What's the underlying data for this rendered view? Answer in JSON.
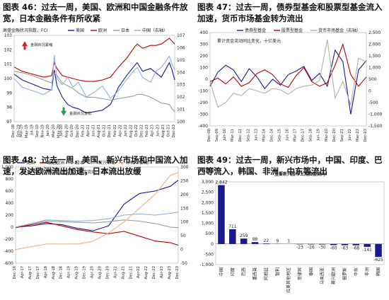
{
  "charts": [
    {
      "title": "图表 46：过去一周，美国、欧洲和中国金融条件放宽，日本金融条件有所收紧",
      "subtitle": "高盛金融状况指数，FCI",
      "legend": [
        "美国",
        "欧洲",
        "日本",
        "中国（右轴）"
      ],
      "annotations": [
        "金融状况紧缩",
        "金融状况宽松"
      ],
      "y_left_ticks": [
        "97",
        "98",
        "99",
        "100",
        "101",
        "102",
        "103"
      ],
      "y_right_ticks": [
        "100",
        "101",
        "102",
        "103",
        "104",
        "105",
        "106",
        "107"
      ],
      "x_ticks": [
        "Dec-18",
        "Feb-19",
        "Mar-19",
        "May-19",
        "Jul-19",
        "Sep-19",
        "Nov-19",
        "Jan-20",
        "Mar-20",
        "May-20",
        "Jun-20",
        "Aug-20",
        "Oct-20",
        "Dec-20",
        "Feb-21",
        "Apr-21",
        "Jun-21",
        "Aug-21",
        "Oct-21",
        "Dec-21",
        "Feb-22",
        "Apr-22",
        "Jun-22",
        "Aug-22",
        "Oct-22",
        "Dec-22",
        "Feb-23",
        "Apr-23",
        "Jun-23",
        "Aug-23",
        "Oct-23",
        "Dec-23"
      ]
    },
    {
      "title": "图表 47：过去一周，债券型基金和股票型基金流入加速，货币市场基金转为流出",
      "subtitle": "累计资金流动同比变化，十亿美元",
      "legend": [
        "债券型基金",
        "股票型基金",
        "货币市场基金（右轴）"
      ],
      "y_left_ticks": [
        "-400",
        "-300",
        "-200",
        "-100",
        "0",
        "100",
        "200",
        "300",
        "400"
      ],
      "y_right_ticks": [
        "-1,500",
        "-1,000",
        "-500",
        "0",
        "500",
        "1,000",
        "1,500",
        "2,000",
        "2,500"
      ],
      "x_ticks": [
        "Dec-08",
        "Sep-09",
        "Jun-10",
        "Mar-11",
        "Dec-11",
        "Sep-12",
        "Jun-13",
        "Mar-14",
        "Dec-14",
        "Sep-15",
        "Jun-16",
        "Mar-17",
        "Dec-17",
        "Sep-18",
        "Jun-19",
        "Mar-20",
        "Dec-20",
        "Sep-21",
        "Jun-22",
        "Mar-23",
        "Dec-23"
      ]
    },
    {
      "title": "图表 48：过去一周，美国、新兴市场和中国流入加速，发达欧洲流出加速，日本流出放缓",
      "subtitle": "2016年以来，股票型基金累计资金流动，十亿美元",
      "legend": [
        "美国",
        "发达欧洲",
        "日本",
        "新兴市场",
        "中国（右轴）"
      ],
      "y_left_ticks": [
        "-600",
        "-400",
        "-200",
        "0",
        "200",
        "400",
        "600",
        "800",
        "1,000"
      ],
      "y_right_ticks": [
        "-50",
        "0",
        "50",
        "100",
        "150",
        "200",
        "250",
        "300"
      ],
      "x_ticks": [
        "Dec-16",
        "Apr-17",
        "Aug-17",
        "Dec-17",
        "Apr-18",
        "Aug-18",
        "Dec-18",
        "Apr-19",
        "Aug-19",
        "Dec-19",
        "Apr-20",
        "Aug-20",
        "Dec-20",
        "Apr-21",
        "Aug-21",
        "Dec-21",
        "Apr-22",
        "Aug-22",
        "Dec-22",
        "Apr-23",
        "Aug-23",
        "Dec-23"
      ]
    },
    {
      "title": "图表 49：过去一周，新兴市场中，中国、印度、巴西等流入，韩国、非洲、中东等流出",
      "unit": "（百万美元）",
      "chart_title": "主要新兴股市上周资金流向",
      "y_ticks": [
        "-1,000",
        "-500",
        "0",
        "500",
        "1,000",
        "1,500",
        "2,000",
        "2,500",
        "3,000"
      ]
    }
  ],
  "chart_data": [
    {
      "type": "line",
      "title": "高盛金融状况指数，FCI",
      "ylim": [
        97,
        103
      ],
      "y2lim": [
        100,
        107
      ],
      "xlim": [
        "Dec-18",
        "Dec-23"
      ],
      "grid": false,
      "series": [
        {
          "name": "美国",
          "axis": "left",
          "color": "#1a1a8c",
          "x": [
            "Dec-18",
            "Mar-19",
            "Jul-19",
            "Nov-19",
            "Feb-20",
            "Mar-20",
            "Apr-20",
            "Jun-20",
            "Aug-20",
            "Oct-20",
            "Dec-20",
            "Mar-21",
            "Jun-21",
            "Sep-21",
            "Dec-21",
            "Mar-22",
            "Jun-22",
            "Sep-22",
            "Oct-22",
            "Dec-22",
            "Mar-23",
            "May-23",
            "Jul-23",
            "Oct-23",
            "Nov-23",
            "Dec-23"
          ],
          "values": [
            100.3,
            99.9,
            99.6,
            99.3,
            99.2,
            100.6,
            99.5,
            98.7,
            98.2,
            98.0,
            97.9,
            97.6,
            97.7,
            97.8,
            98.2,
            99.4,
            100.2,
            100.9,
            101.1,
            100.5,
            100.7,
            100.4,
            100.1,
            101.1,
            100.6,
            99.9
          ]
        },
        {
          "name": "欧洲",
          "axis": "left",
          "color": "#c00000",
          "x": [
            "Dec-18",
            "Mar-19",
            "Jul-19",
            "Nov-19",
            "Feb-20",
            "Mar-20",
            "Apr-20",
            "Jun-20",
            "Aug-20",
            "Oct-20",
            "Dec-20",
            "Mar-21",
            "Jun-21",
            "Sep-21",
            "Dec-21",
            "Mar-22",
            "Jun-22",
            "Sep-22",
            "Oct-22",
            "Dec-22",
            "Mar-23",
            "May-23",
            "Jul-23",
            "Oct-23",
            "Nov-23",
            "Dec-23"
          ],
          "values": [
            100.8,
            100.5,
            100.3,
            100.1,
            100.2,
            101.1,
            100.7,
            100.2,
            100.1,
            100.0,
            99.9,
            99.8,
            99.8,
            99.9,
            100.1,
            100.8,
            101.4,
            102.2,
            102.4,
            102.1,
            102.3,
            102.3,
            102.4,
            102.8,
            102.6,
            102.4
          ]
        },
        {
          "name": "日本",
          "axis": "left",
          "color": "#9a9a9a",
          "x": [
            "Dec-18",
            "Mar-19",
            "Jul-19",
            "Nov-19",
            "Feb-20",
            "Mar-20",
            "Apr-20",
            "Jun-20",
            "Aug-20",
            "Oct-20",
            "Dec-20",
            "Mar-21",
            "Jun-21",
            "Sep-21",
            "Dec-21",
            "Mar-22",
            "Jun-22",
            "Sep-22",
            "Oct-22",
            "Dec-22",
            "Mar-23",
            "May-23",
            "Jul-23",
            "Oct-23",
            "Nov-23",
            "Dec-23"
          ],
          "values": [
            100.5,
            100.4,
            100.2,
            99.9,
            99.7,
            100.4,
            100.2,
            99.7,
            99.5,
            99.3,
            99.0,
            98.7,
            98.7,
            98.6,
            98.5,
            98.6,
            98.7,
            98.8,
            98.9,
            98.9,
            98.7,
            98.5,
            98.3,
            98.2,
            97.9,
            97.7
          ]
        },
        {
          "name": "中国（右轴）",
          "axis": "right",
          "color": "#8fb0dc",
          "x": [
            "Dec-18",
            "Mar-19",
            "Jul-19",
            "Nov-19",
            "Feb-20",
            "Mar-20",
            "Apr-20",
            "Jun-20",
            "Aug-20",
            "Oct-20",
            "Dec-20",
            "Mar-21",
            "Jun-21",
            "Sep-21",
            "Dec-21",
            "Mar-22",
            "Jun-22",
            "Sep-22",
            "Oct-22",
            "Dec-22",
            "Mar-23",
            "May-23",
            "Jul-23",
            "Oct-23",
            "Nov-23",
            "Dec-23"
          ],
          "values": [
            103.5,
            102.8,
            102.5,
            102.2,
            102.6,
            105.4,
            103.5,
            103.0,
            103.6,
            102.8,
            103.2,
            102.0,
            102.4,
            102.9,
            101.9,
            102.5,
            103.4,
            104.2,
            104.4,
            103.6,
            103.2,
            104.1,
            104.4,
            105.3,
            104.7,
            104.2
          ]
        }
      ]
    },
    {
      "type": "line",
      "title": "累计资金流动同比变化，十亿美元",
      "ylim": [
        -400,
        400
      ],
      "y2lim": [
        -1500,
        2500
      ],
      "xlim": [
        "Dec-08",
        "Dec-23"
      ],
      "grid": false,
      "series": [
        {
          "name": "债券型基金",
          "axis": "left",
          "color": "#1a1a8c",
          "x": [
            "Dec-08",
            "Sep-09",
            "Jun-10",
            "Mar-11",
            "Dec-11",
            "Sep-12",
            "Jun-13",
            "Mar-14",
            "Dec-14",
            "Sep-15",
            "Jun-16",
            "Mar-17",
            "Dec-17",
            "Sep-18",
            "Jun-19",
            "Mar-20",
            "Dec-20",
            "Sep-21",
            "Jun-22",
            "Mar-23",
            "Dec-23"
          ],
          "values": [
            -60,
            60,
            120,
            80,
            -20,
            90,
            20,
            -80,
            0,
            -50,
            40,
            70,
            110,
            -10,
            50,
            -60,
            250,
            150,
            -300,
            80,
            160
          ]
        },
        {
          "name": "股票型基金",
          "axis": "left",
          "color": "#c00000",
          "x": [
            "Dec-08",
            "Sep-09",
            "Jun-10",
            "Mar-11",
            "Dec-11",
            "Sep-12",
            "Jun-13",
            "Mar-14",
            "Dec-14",
            "Sep-15",
            "Jun-16",
            "Mar-17",
            "Dec-17",
            "Sep-18",
            "Jun-19",
            "Mar-20",
            "Dec-20",
            "Sep-21",
            "Jun-22",
            "Mar-23",
            "Dec-23"
          ],
          "values": [
            -20,
            10,
            -40,
            20,
            -60,
            -30,
            50,
            80,
            40,
            -40,
            -70,
            30,
            100,
            -20,
            -60,
            -30,
            120,
            300,
            40,
            -60,
            20
          ]
        },
        {
          "name": "货币市场基金（右轴）",
          "axis": "right",
          "color": "#b0b0b0",
          "x": [
            "Dec-08",
            "Sep-09",
            "Jun-10",
            "Mar-11",
            "Dec-11",
            "Sep-12",
            "Jun-13",
            "Mar-14",
            "Dec-14",
            "Sep-15",
            "Jun-16",
            "Mar-17",
            "Dec-17",
            "Sep-18",
            "Jun-19",
            "Mar-20",
            "Dec-20",
            "Sep-21",
            "Jun-22",
            "Mar-23",
            "Dec-23"
          ],
          "values": [
            400,
            -700,
            -500,
            -100,
            -200,
            100,
            0,
            -100,
            100,
            50,
            -150,
            100,
            200,
            250,
            450,
            2200,
            -300,
            400,
            -600,
            1400,
            1250
          ]
        }
      ]
    },
    {
      "type": "line",
      "title": "2016年以来，股票型基金累计资金流动，十亿美元",
      "ylim": [
        -600,
        1000
      ],
      "y2lim": [
        -50,
        300
      ],
      "xlim": [
        "Dec-16",
        "Dec-23"
      ],
      "grid": false,
      "series": [
        {
          "name": "美国",
          "axis": "left",
          "color": "#1a1a8c",
          "x": [
            "Dec-16",
            "Aug-17",
            "Apr-18",
            "Dec-18",
            "Aug-19",
            "Apr-20",
            "Dec-20",
            "Aug-21",
            "Apr-22",
            "Dec-22",
            "Aug-23",
            "Dec-23"
          ],
          "values": [
            0,
            20,
            60,
            40,
            -20,
            -60,
            20,
            380,
            560,
            600,
            680,
            780
          ]
        },
        {
          "name": "发达欧洲",
          "axis": "left",
          "color": "#c00000",
          "x": [
            "Dec-16",
            "Aug-17",
            "Apr-18",
            "Dec-18",
            "Aug-19",
            "Apr-20",
            "Dec-20",
            "Aug-21",
            "Apr-22",
            "Dec-22",
            "Aug-23",
            "Dec-23"
          ],
          "values": [
            -10,
            40,
            80,
            20,
            -40,
            -80,
            -110,
            -70,
            -150,
            -230,
            -260,
            -300
          ]
        },
        {
          "name": "日本",
          "axis": "left",
          "color": "#9a9a9a",
          "x": [
            "Dec-16",
            "Aug-17",
            "Apr-18",
            "Dec-18",
            "Aug-19",
            "Apr-20",
            "Dec-20",
            "Aug-21",
            "Apr-22",
            "Dec-22",
            "Aug-23",
            "Dec-23"
          ],
          "values": [
            0,
            60,
            100,
            90,
            80,
            70,
            90,
            120,
            100,
            60,
            0,
            -10
          ]
        },
        {
          "name": "新兴市场",
          "axis": "left",
          "color": "#8fb0dc",
          "x": [
            "Dec-16",
            "Aug-17",
            "Apr-18",
            "Dec-18",
            "Aug-19",
            "Apr-20",
            "Dec-20",
            "Aug-21",
            "Apr-22",
            "Dec-22",
            "Aug-23",
            "Dec-23"
          ],
          "values": [
            0,
            60,
            120,
            110,
            100,
            110,
            140,
            200,
            220,
            200,
            230,
            250
          ]
        },
        {
          "name": "中国（右轴）",
          "axis": "right",
          "color": "#f4b183",
          "x": [
            "Dec-16",
            "Aug-17",
            "Apr-18",
            "Dec-18",
            "Aug-19",
            "Apr-20",
            "Dec-20",
            "Aug-21",
            "Apr-22",
            "Dec-22",
            "Aug-23",
            "Dec-23"
          ],
          "values": [
            0,
            10,
            20,
            20,
            20,
            30,
            60,
            100,
            150,
            200,
            270,
            280
          ]
        }
      ]
    },
    {
      "type": "bar",
      "title": "主要新兴股市上周资金流向",
      "unit": "（百万美元）",
      "ylim": [
        -1000,
        3000
      ],
      "grid": false,
      "categories": [
        "中国",
        "印度",
        "巴西",
        "墨西哥",
        "阿根廷",
        "智利",
        "拉美其他地区",
        "菲律宾",
        "泰国",
        "马来西亚",
        "新兴欧洲",
        "俄罗斯",
        "中东",
        "非洲",
        "韩国"
      ],
      "values": [
        2842,
        711,
        259,
        88,
        22,
        9,
        1,
        -23,
        -26,
        -30,
        -60,
        -63,
        -68,
        -141,
        -625
      ],
      "value_labels": [
        "2,842",
        "711",
        "259",
        "88",
        "22",
        "9",
        "1",
        "-23",
        "-26",
        "-30",
        "-60",
        "-63",
        "-68",
        "-141",
        "-625"
      ],
      "color": "#1a1a8c"
    }
  ]
}
